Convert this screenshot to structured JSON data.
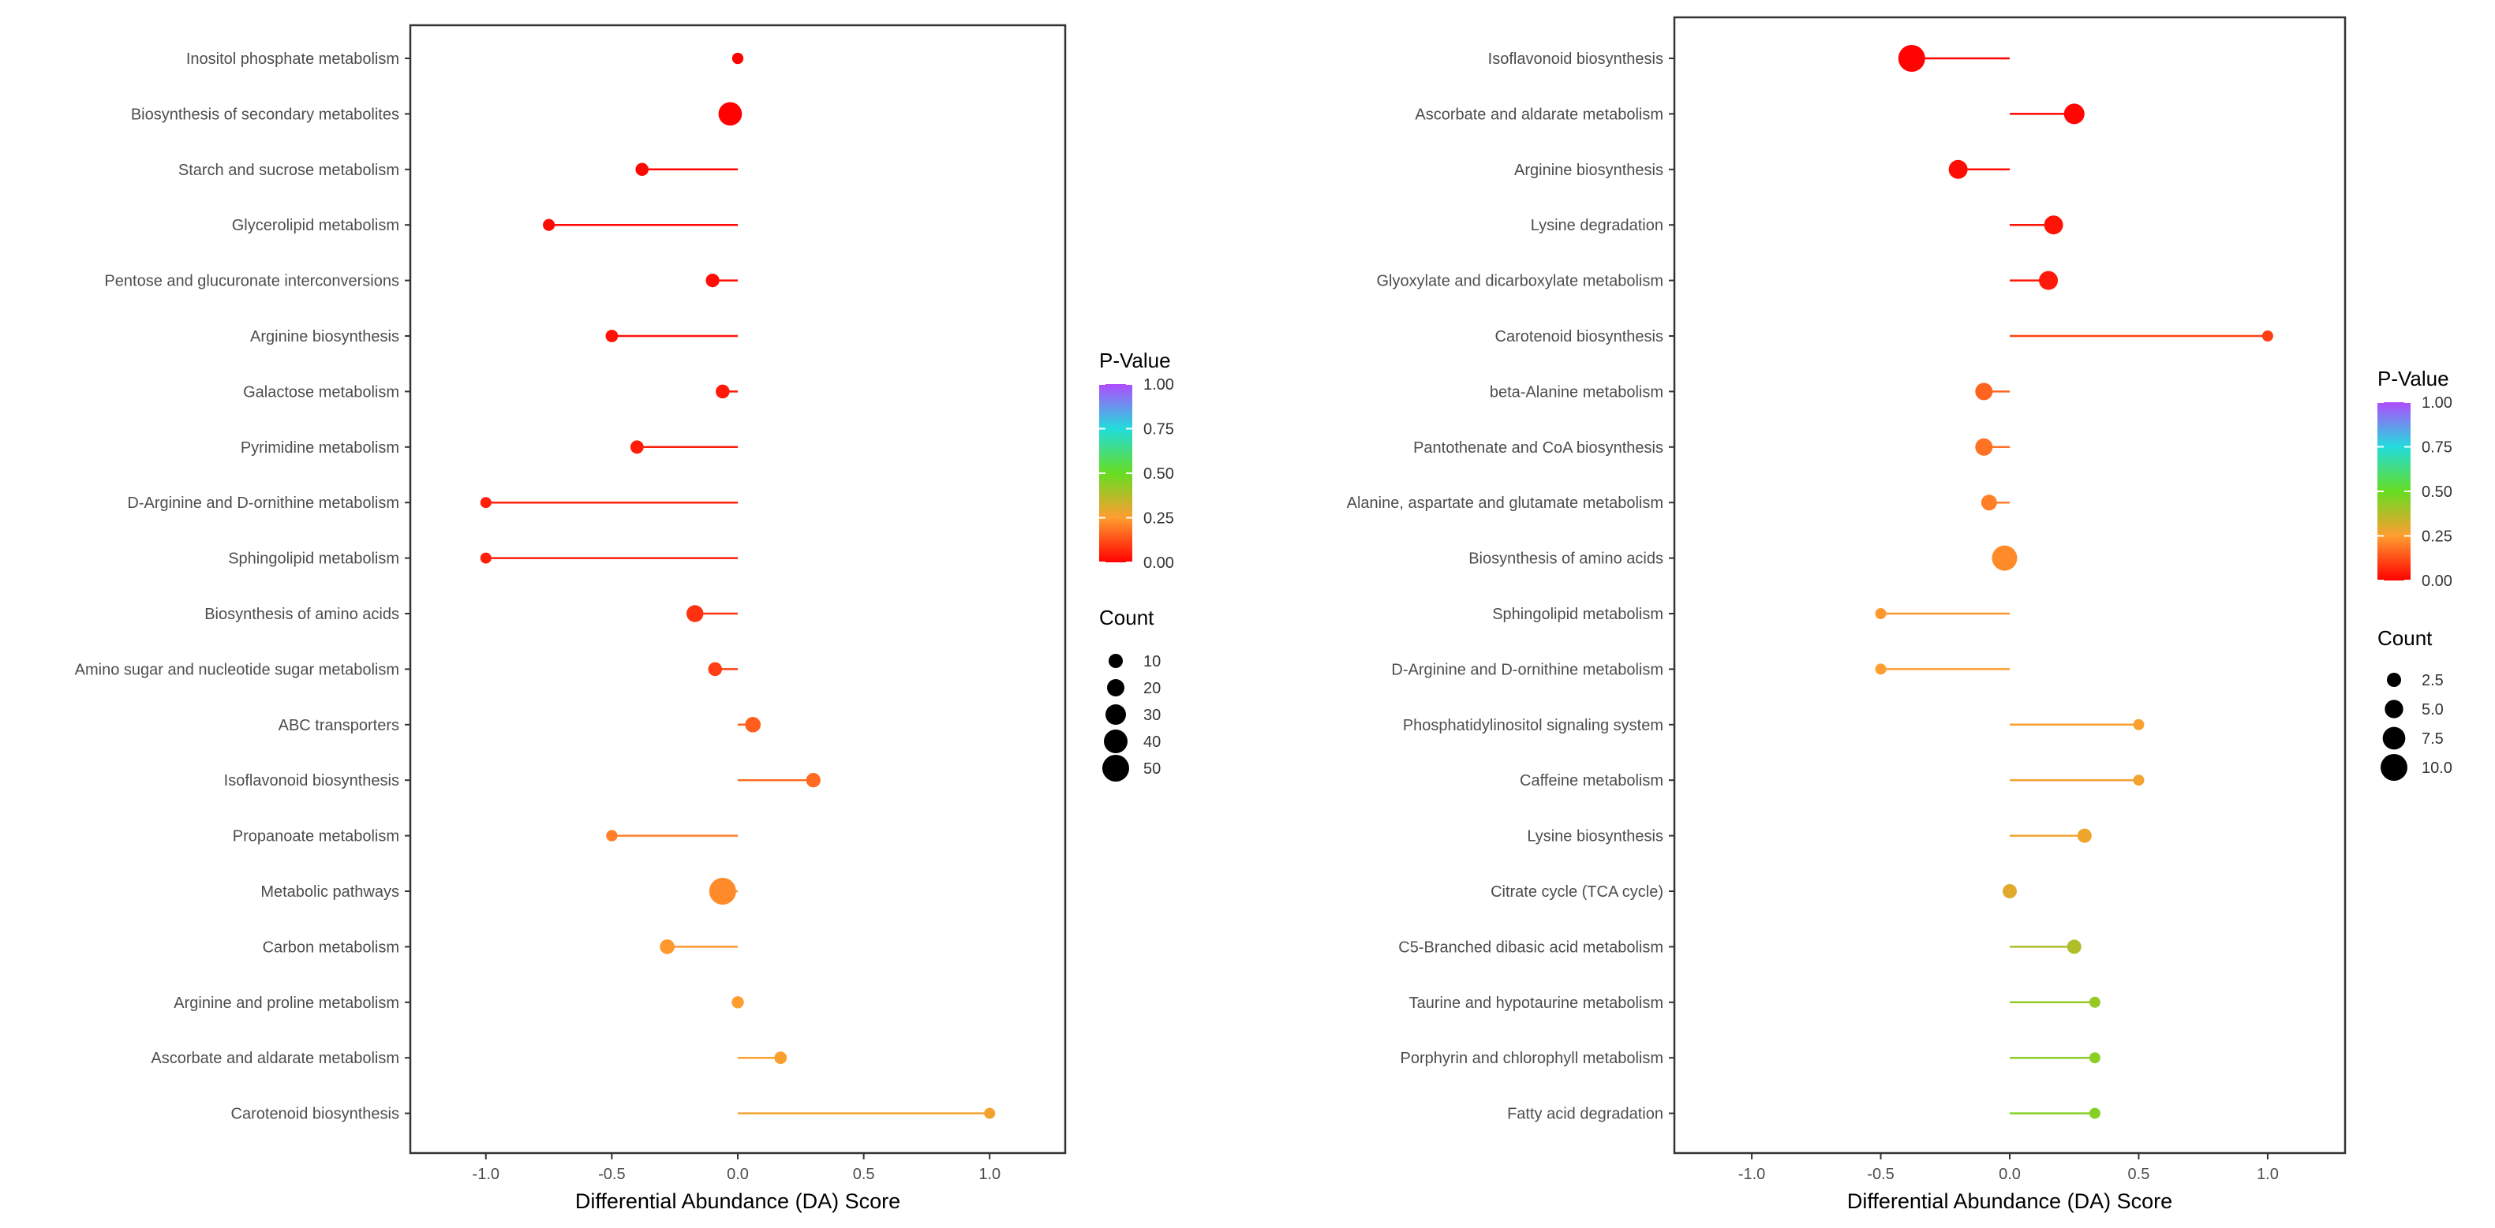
{
  "chart_data": [
    {
      "type": "lollipop",
      "xlabel": "Differential Abundance (DA) Score",
      "xlim": [
        -1.3,
        1.3
      ],
      "x_ticks": [
        -1.0,
        -0.5,
        0.0,
        0.5,
        1.0
      ],
      "x_tick_labels": [
        "-1.0",
        "-0.5",
        "0.0",
        "0.5",
        "1.0"
      ],
      "grid": false,
      "categories": [
        "Inositol phosphate metabolism",
        "Biosynthesis of secondary metabolites",
        "Starch and sucrose metabolism",
        "Glycerolipid metabolism",
        "Pentose and glucuronate interconversions",
        "Arginine biosynthesis",
        "Galactose metabolism",
        "Pyrimidine metabolism",
        "D-Arginine and D-ornithine metabolism",
        "Sphingolipid metabolism",
        "Biosynthesis of amino acids",
        "Amino sugar and nucleotide sugar metabolism",
        "ABC transporters",
        "Isoflavonoid biosynthesis",
        "Propanoate metabolism",
        "Metabolic pathways",
        "Carbon metabolism",
        "Arginine and proline metabolism",
        "Ascorbate and aldarate metabolism",
        "Carotenoid biosynthesis"
      ],
      "da_scores": [
        0.0,
        -0.03,
        -0.38,
        -0.75,
        -0.1,
        -0.5,
        -0.06,
        -0.4,
        -1.0,
        -1.0,
        -0.17,
        -0.09,
        0.06,
        0.3,
        -0.5,
        -0.06,
        -0.28,
        0.0,
        0.17,
        1.0
      ],
      "counts": [
        2,
        45,
        8,
        4,
        10,
        6,
        11,
        9,
        1,
        1,
        22,
        11,
        17,
        13,
        2,
        57,
        14,
        5,
        6,
        1
      ],
      "p_values": [
        0.001,
        0.002,
        0.01,
        0.015,
        0.02,
        0.03,
        0.04,
        0.045,
        0.05,
        0.05,
        0.08,
        0.1,
        0.15,
        0.17,
        0.2,
        0.22,
        0.24,
        0.25,
        0.26,
        0.27
      ],
      "color_legend": {
        "title": "P-Value",
        "ticks": [
          "1.00",
          "0.75",
          "0.50",
          "0.25",
          "0.00"
        ],
        "range": [
          0,
          1
        ],
        "placement": "right"
      },
      "size_legend": {
        "title": "Count",
        "values": [
          10,
          20,
          30,
          40,
          50
        ],
        "labels": [
          "10",
          "20",
          "30",
          "40",
          "50"
        ],
        "placement": "right"
      }
    },
    {
      "type": "lollipop",
      "xlabel": "Differential Abundance (DA) Score",
      "xlim": [
        -1.3,
        1.3
      ],
      "x_ticks": [
        -1.0,
        -0.5,
        0.0,
        0.5,
        1.0
      ],
      "x_tick_labels": [
        "-1.0",
        "-0.5",
        "0.0",
        "0.5",
        "1.0"
      ],
      "grid": false,
      "categories": [
        "Isoflavonoid biosynthesis",
        "Ascorbate and aldarate metabolism",
        "Arginine biosynthesis",
        "Lysine degradation",
        "Glyoxylate and dicarboxylate metabolism",
        "Carotenoid biosynthesis",
        "beta-Alanine metabolism",
        "Pantothenate and CoA biosynthesis",
        "Alanine, aspartate and glutamate metabolism",
        "Biosynthesis of amino acids",
        "Sphingolipid metabolism",
        "D-Arginine and D-ornithine metabolism",
        "Phosphatidylinositol signaling system",
        "Caffeine metabolism",
        "Lysine biosynthesis",
        "Citrate cycle (TCA cycle)",
        "C5-Branched dibasic acid metabolism",
        "Taurine and hypotaurine metabolism",
        "Porphyrin and chlorophyll metabolism",
        "Fatty acid degradation"
      ],
      "da_scores": [
        -0.38,
        0.25,
        -0.2,
        0.17,
        0.15,
        1.0,
        -0.1,
        -0.1,
        -0.08,
        -0.02,
        -0.5,
        -0.5,
        0.5,
        0.5,
        0.29,
        0.0,
        0.25,
        0.33,
        0.33,
        0.33
      ],
      "counts": [
        11,
        7,
        6,
        6,
        6,
        1,
        5,
        5,
        4,
        10,
        1,
        1,
        1,
        1,
        3,
        3,
        3,
        1,
        1,
        1
      ],
      "p_values": [
        0.003,
        0.01,
        0.02,
        0.03,
        0.04,
        0.1,
        0.16,
        0.18,
        0.2,
        0.22,
        0.24,
        0.25,
        0.26,
        0.27,
        0.28,
        0.3,
        0.38,
        0.42,
        0.44,
        0.45
      ],
      "color_legend": {
        "title": "P-Value",
        "ticks": [
          "1.00",
          "0.75",
          "0.50",
          "0.25",
          "0.00"
        ],
        "range": [
          0,
          1
        ],
        "placement": "right"
      },
      "size_legend": {
        "title": "Count",
        "values": [
          2.5,
          5.0,
          7.5,
          10.0
        ],
        "labels": [
          "2.5",
          "5.0",
          "7.5",
          "10.0"
        ],
        "placement": "right"
      }
    }
  ]
}
